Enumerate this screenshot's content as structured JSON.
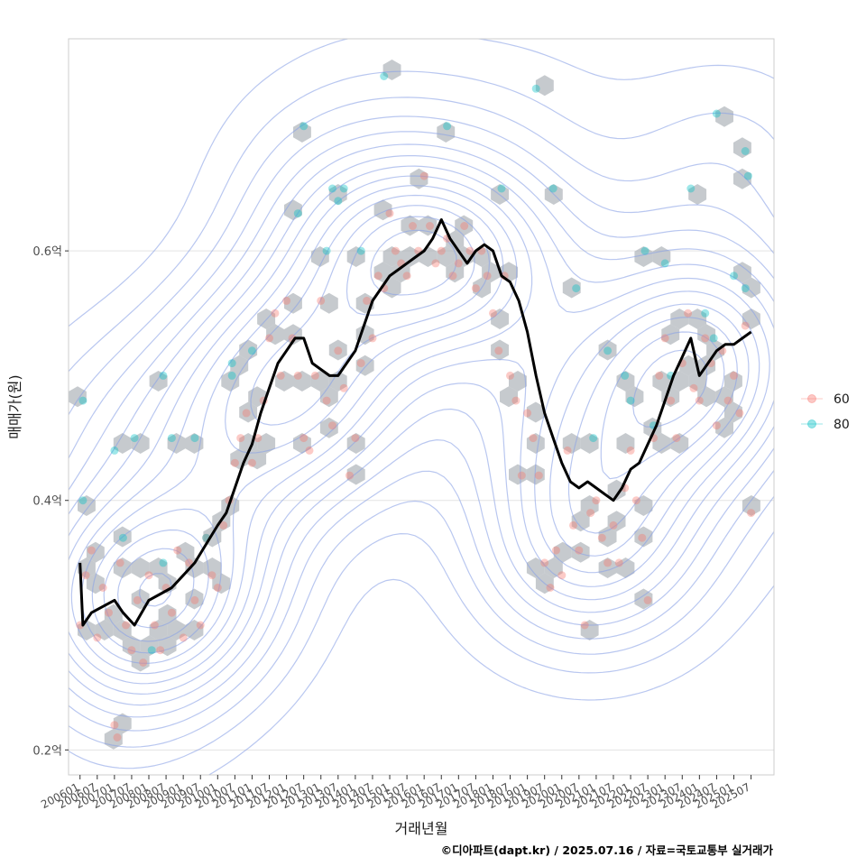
{
  "chart_data": {
    "type": "scatter",
    "xlabel": "거래년월",
    "ylabel": "매매가(원)",
    "caption": "©디아파트(dapt.kr) / 2025.07.16 / 자료=국토교통부 실거래가",
    "y_unit": "억",
    "ylim": [
      0.18,
      0.77
    ],
    "y_ticks": [
      {
        "value": 0.2,
        "label": "0.2억"
      },
      {
        "value": 0.4,
        "label": "0.4억"
      },
      {
        "value": 0.6,
        "label": "0.6억"
      }
    ],
    "x_range": [
      "2005-09",
      "2026-03"
    ],
    "x_ticks": [
      "200601",
      "200607",
      "200701",
      "200707",
      "200801",
      "200807",
      "200901",
      "200907",
      "201001",
      "201007",
      "201101",
      "201107",
      "201201",
      "201207",
      "201301",
      "201307",
      "201401",
      "201407",
      "201501",
      "201507",
      "201601",
      "201607",
      "201701",
      "201707",
      "201801",
      "201807",
      "201901",
      "201907",
      "202001",
      "202007",
      "202101",
      "202107",
      "202201",
      "202207",
      "202301",
      "202307",
      "202401",
      "202407",
      "202501",
      "202507"
    ],
    "grid": true,
    "legend_position": "right",
    "colors": {
      "series_60": "#F8766D",
      "series_80": "#00BFC4",
      "trend": "#000000",
      "hexbin": "#a7adb4",
      "contour": "#8aa2e6",
      "grid": "#e3e3e3",
      "panel_border": "#cccccc"
    },
    "series": [
      {
        "name": "60",
        "points": [
          [
            "2006-01",
            0.3
          ],
          [
            "2006-03",
            0.34
          ],
          [
            "2006-05",
            0.36
          ],
          [
            "2006-07",
            0.29
          ],
          [
            "2006-09",
            0.33
          ],
          [
            "2006-11",
            0.31
          ],
          [
            "2007-01",
            0.22
          ],
          [
            "2007-02",
            0.21
          ],
          [
            "2007-03",
            0.35
          ],
          [
            "2007-05",
            0.3
          ],
          [
            "2007-07",
            0.28
          ],
          [
            "2007-09",
            0.32
          ],
          [
            "2007-11",
            0.27
          ],
          [
            "2008-01",
            0.34
          ],
          [
            "2008-03",
            0.3
          ],
          [
            "2008-05",
            0.28
          ],
          [
            "2008-07",
            0.33
          ],
          [
            "2008-09",
            0.31
          ],
          [
            "2008-11",
            0.36
          ],
          [
            "2009-01",
            0.29
          ],
          [
            "2009-03",
            0.35
          ],
          [
            "2009-05",
            0.32
          ],
          [
            "2009-07",
            0.3
          ],
          [
            "2009-09",
            0.37
          ],
          [
            "2009-11",
            0.34
          ],
          [
            "2010-01",
            0.33
          ],
          [
            "2010-03",
            0.38
          ],
          [
            "2010-05",
            0.4
          ],
          [
            "2010-07",
            0.43
          ],
          [
            "2010-09",
            0.45
          ],
          [
            "2010-11",
            0.47
          ],
          [
            "2011-01",
            0.43
          ],
          [
            "2011-03",
            0.45
          ],
          [
            "2011-05",
            0.48
          ],
          [
            "2011-07",
            0.53
          ],
          [
            "2011-09",
            0.55
          ],
          [
            "2011-11",
            0.5
          ],
          [
            "2012-01",
            0.56
          ],
          [
            "2012-03",
            0.53
          ],
          [
            "2012-05",
            0.5
          ],
          [
            "2012-07",
            0.45
          ],
          [
            "2012-09",
            0.44
          ],
          [
            "2012-11",
            0.5
          ],
          [
            "2013-01",
            0.56
          ],
          [
            "2013-03",
            0.48
          ],
          [
            "2013-05",
            0.46
          ],
          [
            "2013-07",
            0.52
          ],
          [
            "2013-09",
            0.49
          ],
          [
            "2013-11",
            0.42
          ],
          [
            "2014-01",
            0.45
          ],
          [
            "2014-03",
            0.51
          ],
          [
            "2014-05",
            0.56
          ],
          [
            "2014-07",
            0.53
          ],
          [
            "2014-09",
            0.58
          ],
          [
            "2014-11",
            0.57
          ],
          [
            "2015-01",
            0.63
          ],
          [
            "2015-03",
            0.6
          ],
          [
            "2015-05",
            0.59
          ],
          [
            "2015-07",
            0.58
          ],
          [
            "2015-09",
            0.62
          ],
          [
            "2015-11",
            0.6
          ],
          [
            "2016-01",
            0.66
          ],
          [
            "2016-03",
            0.62
          ],
          [
            "2016-05",
            0.59
          ],
          [
            "2016-07",
            0.6
          ],
          [
            "2016-09",
            0.61
          ],
          [
            "2016-11",
            0.58
          ],
          [
            "2017-01",
            0.59
          ],
          [
            "2017-03",
            0.62
          ],
          [
            "2017-05",
            0.6
          ],
          [
            "2017-07",
            0.57
          ],
          [
            "2017-09",
            0.6
          ],
          [
            "2017-11",
            0.58
          ],
          [
            "2018-01",
            0.55
          ],
          [
            "2018-03",
            0.52
          ],
          [
            "2018-05",
            0.58
          ],
          [
            "2018-07",
            0.5
          ],
          [
            "2018-09",
            0.48
          ],
          [
            "2018-11",
            0.42
          ],
          [
            "2019-01",
            0.47
          ],
          [
            "2019-03",
            0.45
          ],
          [
            "2019-05",
            0.42
          ],
          [
            "2019-07",
            0.35
          ],
          [
            "2019-09",
            0.33
          ],
          [
            "2019-11",
            0.36
          ],
          [
            "2020-01",
            0.34
          ],
          [
            "2020-03",
            0.44
          ],
          [
            "2020-05",
            0.38
          ],
          [
            "2020-07",
            0.36
          ],
          [
            "2020-09",
            0.3
          ],
          [
            "2020-11",
            0.39
          ],
          [
            "2021-01",
            0.4
          ],
          [
            "2021-03",
            0.37
          ],
          [
            "2021-05",
            0.35
          ],
          [
            "2021-07",
            0.38
          ],
          [
            "2021-09",
            0.35
          ],
          [
            "2021-11",
            0.41
          ],
          [
            "2022-01",
            0.44
          ],
          [
            "2022-03",
            0.4
          ],
          [
            "2022-05",
            0.37
          ],
          [
            "2022-07",
            0.32
          ],
          [
            "2022-09",
            0.45
          ],
          [
            "2022-11",
            0.5
          ],
          [
            "2023-01",
            0.53
          ],
          [
            "2023-03",
            0.48
          ],
          [
            "2023-05",
            0.45
          ],
          [
            "2023-07",
            0.51
          ],
          [
            "2023-09",
            0.55
          ],
          [
            "2023-11",
            0.49
          ],
          [
            "2024-01",
            0.48
          ],
          [
            "2024-03",
            0.53
          ],
          [
            "2024-05",
            0.51
          ],
          [
            "2024-07",
            0.46
          ],
          [
            "2024-09",
            0.52
          ],
          [
            "2024-11",
            0.48
          ],
          [
            "2025-01",
            0.5
          ],
          [
            "2025-03",
            0.47
          ],
          [
            "2025-05",
            0.54
          ],
          [
            "2025-07",
            0.39
          ]
        ]
      },
      {
        "name": "80",
        "points": [
          [
            "2006-02",
            0.48
          ],
          [
            "2006-02",
            0.4
          ],
          [
            "2007-01",
            0.44
          ],
          [
            "2007-04",
            0.37
          ],
          [
            "2007-08",
            0.45
          ],
          [
            "2008-02",
            0.28
          ],
          [
            "2008-06",
            0.5
          ],
          [
            "2008-06",
            0.35
          ],
          [
            "2008-09",
            0.45
          ],
          [
            "2009-05",
            0.45
          ],
          [
            "2009-09",
            0.37
          ],
          [
            "2010-06",
            0.5
          ],
          [
            "2010-06",
            0.51
          ],
          [
            "2011-01",
            0.52
          ],
          [
            "2012-05",
            0.63
          ],
          [
            "2012-07",
            0.7
          ],
          [
            "2013-03",
            0.6
          ],
          [
            "2013-05",
            0.65
          ],
          [
            "2013-07",
            0.64
          ],
          [
            "2013-09",
            0.65
          ],
          [
            "2014-03",
            0.6
          ],
          [
            "2014-11",
            0.74
          ],
          [
            "2016-09",
            0.7
          ],
          [
            "2018-04",
            0.65
          ],
          [
            "2019-04",
            0.73
          ],
          [
            "2019-10",
            0.65
          ],
          [
            "2020-06",
            0.57
          ],
          [
            "2020-12",
            0.45
          ],
          [
            "2021-05",
            0.52
          ],
          [
            "2021-11",
            0.5
          ],
          [
            "2022-01",
            0.48
          ],
          [
            "2022-06",
            0.6
          ],
          [
            "2022-09",
            0.46
          ],
          [
            "2023-01",
            0.59
          ],
          [
            "2023-03",
            0.5
          ],
          [
            "2023-10",
            0.65
          ],
          [
            "2024-03",
            0.55
          ],
          [
            "2024-06",
            0.53
          ],
          [
            "2024-07",
            0.71
          ],
          [
            "2025-01",
            0.58
          ],
          [
            "2025-05",
            0.68
          ],
          [
            "2025-06",
            0.66
          ],
          [
            "2025-05",
            0.57
          ]
        ]
      }
    ],
    "trend": [
      [
        "2006-01",
        0.35
      ],
      [
        "2006-02",
        0.3
      ],
      [
        "2006-05",
        0.31
      ],
      [
        "2006-09",
        0.315
      ],
      [
        "2007-01",
        0.32
      ],
      [
        "2007-04",
        0.31
      ],
      [
        "2007-08",
        0.3
      ],
      [
        "2008-01",
        0.32
      ],
      [
        "2008-05",
        0.325
      ],
      [
        "2008-09",
        0.33
      ],
      [
        "2009-01",
        0.34
      ],
      [
        "2009-05",
        0.35
      ],
      [
        "2009-09",
        0.365
      ],
      [
        "2010-01",
        0.38
      ],
      [
        "2010-04",
        0.39
      ],
      [
        "2010-07",
        0.41
      ],
      [
        "2010-10",
        0.43
      ],
      [
        "2011-01",
        0.445
      ],
      [
        "2011-04",
        0.47
      ],
      [
        "2011-07",
        0.49
      ],
      [
        "2011-10",
        0.51
      ],
      [
        "2012-01",
        0.52
      ],
      [
        "2012-04",
        0.53
      ],
      [
        "2012-07",
        0.53
      ],
      [
        "2012-10",
        0.51
      ],
      [
        "2013-01",
        0.505
      ],
      [
        "2013-04",
        0.5
      ],
      [
        "2013-07",
        0.5
      ],
      [
        "2013-10",
        0.51
      ],
      [
        "2014-01",
        0.52
      ],
      [
        "2014-04",
        0.54
      ],
      [
        "2014-07",
        0.56
      ],
      [
        "2014-10",
        0.57
      ],
      [
        "2015-01",
        0.58
      ],
      [
        "2015-04",
        0.585
      ],
      [
        "2015-07",
        0.59
      ],
      [
        "2015-10",
        0.595
      ],
      [
        "2016-01",
        0.6
      ],
      [
        "2016-04",
        0.61
      ],
      [
        "2016-07",
        0.625
      ],
      [
        "2016-10",
        0.61
      ],
      [
        "2017-01",
        0.6
      ],
      [
        "2017-04",
        0.59
      ],
      [
        "2017-07",
        0.6
      ],
      [
        "2017-10",
        0.605
      ],
      [
        "2018-01",
        0.6
      ],
      [
        "2018-04",
        0.58
      ],
      [
        "2018-07",
        0.575
      ],
      [
        "2018-10",
        0.56
      ],
      [
        "2019-01",
        0.535
      ],
      [
        "2019-04",
        0.5
      ],
      [
        "2019-07",
        0.47
      ],
      [
        "2019-10",
        0.45
      ],
      [
        "2020-01",
        0.43
      ],
      [
        "2020-04",
        0.415
      ],
      [
        "2020-07",
        0.41
      ],
      [
        "2020-10",
        0.415
      ],
      [
        "2021-01",
        0.41
      ],
      [
        "2021-04",
        0.405
      ],
      [
        "2021-07",
        0.4
      ],
      [
        "2021-10",
        0.41
      ],
      [
        "2022-01",
        0.425
      ],
      [
        "2022-04",
        0.43
      ],
      [
        "2022-07",
        0.445
      ],
      [
        "2022-10",
        0.46
      ],
      [
        "2023-01",
        0.48
      ],
      [
        "2023-04",
        0.5
      ],
      [
        "2023-07",
        0.515
      ],
      [
        "2023-10",
        0.53
      ],
      [
        "2024-01",
        0.5
      ],
      [
        "2024-04",
        0.51
      ],
      [
        "2024-07",
        0.52
      ],
      [
        "2024-10",
        0.525
      ],
      [
        "2025-01",
        0.525
      ],
      [
        "2025-04",
        0.53
      ],
      [
        "2025-07",
        0.535
      ]
    ]
  }
}
